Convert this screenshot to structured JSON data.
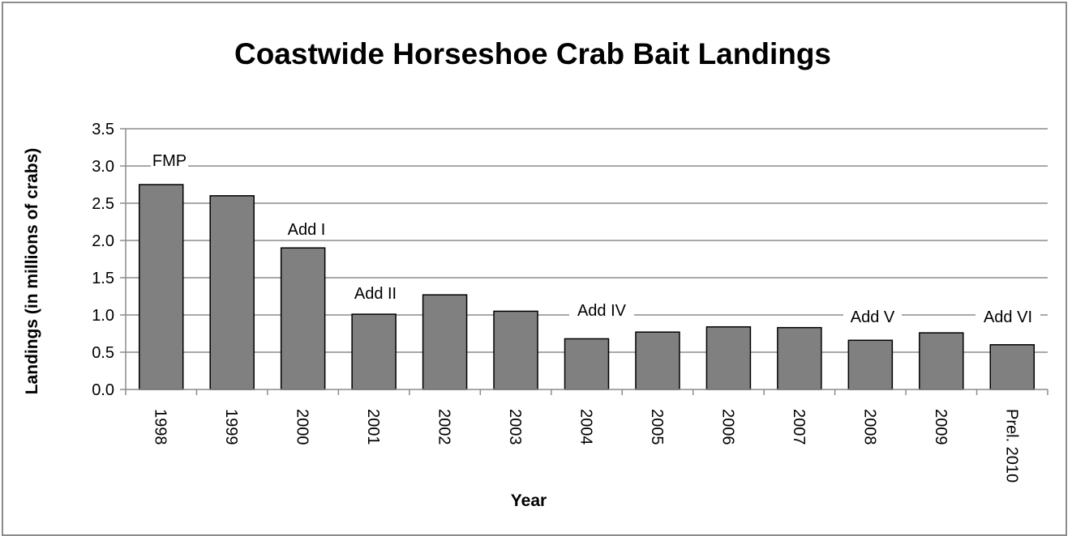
{
  "chart_data": {
    "type": "bar",
    "title": "Coastwide Horseshoe Crab Bait Landings",
    "xlabel": "Year",
    "ylabel": "Landings (in millions of crabs)",
    "ylim": [
      0,
      3.5
    ],
    "yticks": [
      "0.0",
      "0.5",
      "1.0",
      "1.5",
      "2.0",
      "2.5",
      "3.0",
      "3.5"
    ],
    "grid": true,
    "categories": [
      "1998",
      "1999",
      "2000",
      "2001",
      "2002",
      "2003",
      "2004",
      "2005",
      "2006",
      "2007",
      "2008",
      "2009",
      "Prel. 2010"
    ],
    "values": [
      2.75,
      2.6,
      1.9,
      1.01,
      1.27,
      1.05,
      0.68,
      0.77,
      0.84,
      0.83,
      0.66,
      0.76,
      0.6
    ],
    "annotations": [
      {
        "text": "FMP",
        "category": "1998"
      },
      {
        "text": "Add I",
        "category": "2000"
      },
      {
        "text": "Add II",
        "category": "2001"
      },
      {
        "text": "Add IV",
        "category": "2004"
      },
      {
        "text": "Add V",
        "category": "2008"
      },
      {
        "text": "Add VI",
        "category": "Prel. 2010"
      }
    ],
    "colors": {
      "bar": "#808080",
      "bar_stroke": "#000000",
      "grid": "#8c8c8c"
    }
  }
}
